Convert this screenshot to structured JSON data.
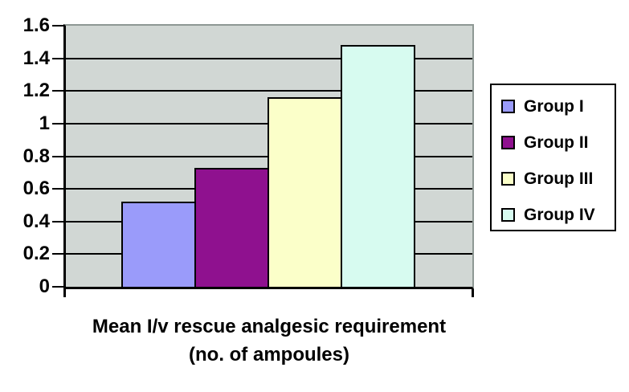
{
  "chart_data": {
    "type": "bar",
    "categories": [
      "Group I",
      "Group II",
      "Group III",
      "Group IV"
    ],
    "values": [
      0.52,
      0.73,
      1.16,
      1.48
    ],
    "series_colors": [
      "#9A9BFA",
      "#8F118F",
      "#FBFFC9",
      "#D7FBF0"
    ],
    "title": "Mean I/v rescue analgesic requirement",
    "subtitle": "(no. of ampoules)",
    "ylim": [
      0,
      1.6
    ],
    "ytick_step": 0.2,
    "ytick_labels": [
      "0",
      "0.2",
      "0.4",
      "0.6",
      "0.8",
      "1",
      "1.2",
      "1.4",
      "1.6"
    ],
    "grid": true,
    "legend_position": "right",
    "legend": [
      "Group I",
      "Group II",
      "Group III",
      "Group IV"
    ],
    "colors": {
      "plot_background": "#D1D7D4",
      "gridline": "#000000",
      "axis": "#000000",
      "legend_background": "#FFFFFF",
      "legend_border": "#000000"
    }
  }
}
